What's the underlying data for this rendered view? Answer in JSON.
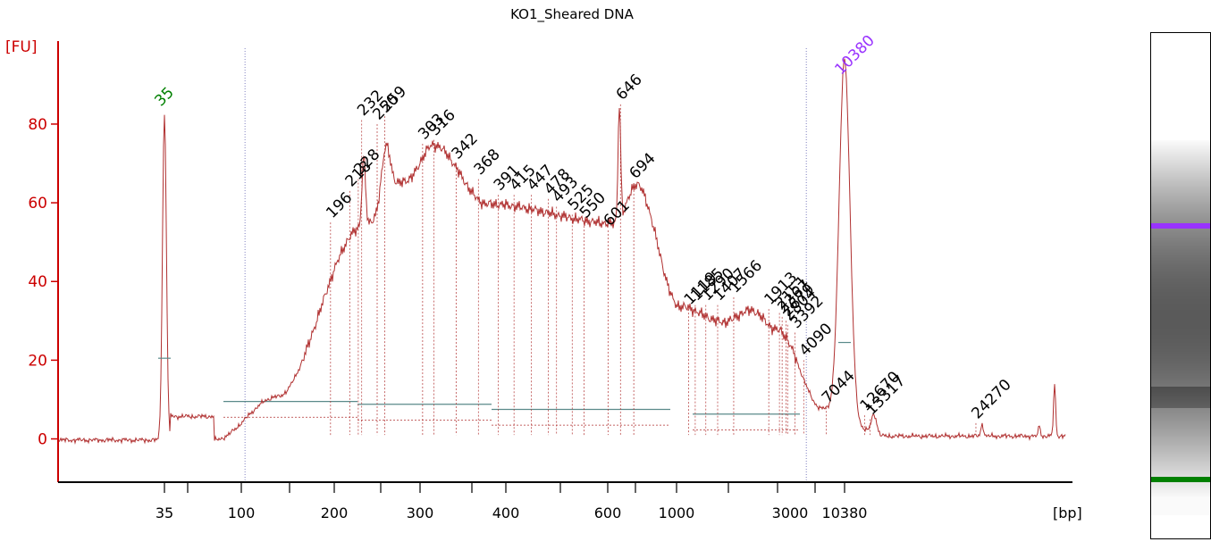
{
  "chart_data": {
    "type": "line",
    "title": "KO1_Sheared DNA",
    "ylabel": "[FU]",
    "xlabel": "[bp]",
    "ylim": [
      -11,
      102
    ],
    "yticks": [
      0,
      20,
      40,
      60,
      80
    ],
    "xticks": [
      "35",
      "100",
      "200",
      "300",
      "400",
      "600",
      "1000",
      "3000",
      "10380"
    ],
    "region_bounds_bp": [
      104,
      4300
    ],
    "grid": false,
    "colors": {
      "trace": "#b03030",
      "axis": "#cc0000",
      "baseline": "#5a8a8a",
      "lower_marker": "#008000",
      "upper_marker": "#9933ff",
      "region": "#8080c0"
    },
    "markers": [
      {
        "label": "35",
        "bp": 35,
        "fu": 83,
        "color": "#008000"
      },
      {
        "label": "10380",
        "bp": 10380,
        "fu": 91,
        "color": "#9933ff"
      }
    ],
    "peaks": [
      {
        "label": "196",
        "bp": 196,
        "fu": 55
      },
      {
        "label": "218",
        "bp": 218,
        "fu": 63
      },
      {
        "label": "228",
        "bp": 228,
        "fu": 66
      },
      {
        "label": "232",
        "bp": 232,
        "fu": 81
      },
      {
        "label": "250",
        "bp": 250,
        "fu": 80
      },
      {
        "label": "259",
        "bp": 259,
        "fu": 82
      },
      {
        "label": "303",
        "bp": 303,
        "fu": 75
      },
      {
        "label": "316",
        "bp": 316,
        "fu": 76
      },
      {
        "label": "342",
        "bp": 342,
        "fu": 70
      },
      {
        "label": "368",
        "bp": 368,
        "fu": 66
      },
      {
        "label": "391",
        "bp": 391,
        "fu": 62
      },
      {
        "label": "415",
        "bp": 415,
        "fu": 62
      },
      {
        "label": "447",
        "bp": 447,
        "fu": 62
      },
      {
        "label": "478",
        "bp": 478,
        "fu": 61
      },
      {
        "label": "493",
        "bp": 493,
        "fu": 59
      },
      {
        "label": "525",
        "bp": 525,
        "fu": 57
      },
      {
        "label": "550",
        "bp": 550,
        "fu": 55
      },
      {
        "label": "601",
        "bp": 601,
        "fu": 53
      },
      {
        "label": "646",
        "bp": 646,
        "fu": 85
      },
      {
        "label": "694",
        "bp": 694,
        "fu": 65
      },
      {
        "label": "1119",
        "bp": 1119,
        "fu": 33
      },
      {
        "label": "1185",
        "bp": 1185,
        "fu": 34
      },
      {
        "label": "1290",
        "bp": 1290,
        "fu": 34
      },
      {
        "label": "1407",
        "bp": 1407,
        "fu": 34
      },
      {
        "label": "1566",
        "bp": 1566,
        "fu": 36
      },
      {
        "label": "1913",
        "bp": 1913,
        "fu": 33
      },
      {
        "label": "2151",
        "bp": 2151,
        "fu": 32
      },
      {
        "label": "2367",
        "bp": 2367,
        "fu": 31
      },
      {
        "label": "2679",
        "bp": 2679,
        "fu": 30
      },
      {
        "label": "2804",
        "bp": 2804,
        "fu": 29
      },
      {
        "label": "3392",
        "bp": 3392,
        "fu": 27
      },
      {
        "label": "4090",
        "bp": 4090,
        "fu": 20
      },
      {
        "label": "7044",
        "bp": 7044,
        "fu": 8
      },
      {
        "label": "12670",
        "bp": 12670,
        "fu": 6
      },
      {
        "label": "13317",
        "bp": 13317,
        "fu": 5
      },
      {
        "label": "24270",
        "bp": 24270,
        "fu": 4
      }
    ]
  }
}
